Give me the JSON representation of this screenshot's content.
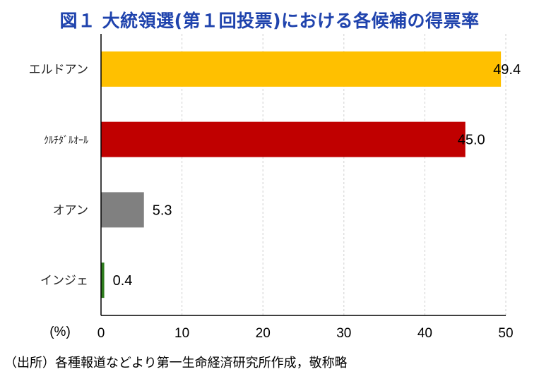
{
  "chart_data": {
    "type": "bar",
    "orientation": "horizontal",
    "title": "図１ 大統領選(第１回投票)における各候補の得票率",
    "categories": [
      "エルドアン",
      "ｸﾙﾁﾀﾞﾙｵｰﾙ",
      "オアン",
      "インジェ"
    ],
    "values": [
      49.4,
      45.0,
      5.3,
      0.4
    ],
    "value_labels": [
      "49.4",
      "45.0",
      "5.3",
      "0.4"
    ],
    "colors": [
      "#ffc000",
      "#c00000",
      "#808080",
      "#2e7d1e"
    ],
    "xlabel": "(%)",
    "xlim": [
      0,
      50
    ],
    "xticks": [
      "0",
      "10",
      "20",
      "30",
      "40",
      "50"
    ],
    "grid": "vertical dashed"
  },
  "source": "（出所）各種報道などより第一生命経済研究所作成，敬称略"
}
